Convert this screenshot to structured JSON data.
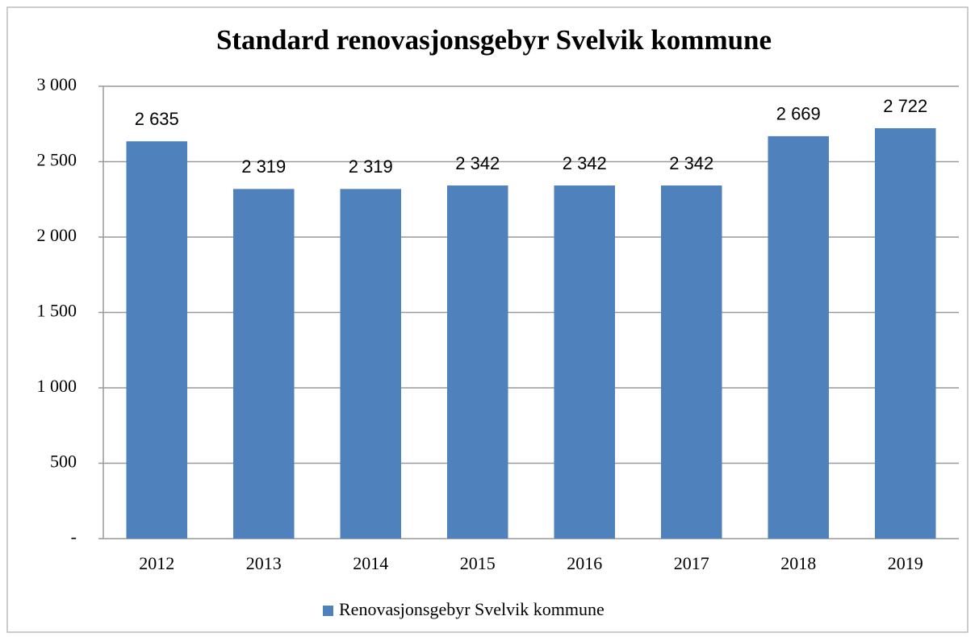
{
  "chart_data": {
    "type": "bar",
    "title": "Standard renovasjonsgebyr Svelvik kommune",
    "categories": [
      "2012",
      "2013",
      "2014",
      "2015",
      "2016",
      "2017",
      "2018",
      "2019"
    ],
    "series": [
      {
        "name": "Renovasjonsgebyr Svelvik kommune",
        "color": "#4f81bd",
        "values": [
          2635,
          2319,
          2319,
          2342,
          2342,
          2342,
          2669,
          2722
        ],
        "value_labels": [
          "2 635",
          "2 319",
          "2 319",
          "2 342",
          "2 342",
          "2 342",
          "2 669",
          "2 722"
        ]
      }
    ],
    "ylim": [
      0,
      3000
    ],
    "yticks": [
      {
        "value": 0,
        "label": "-"
      },
      500,
      {
        "value": 1000,
        "label": "1 000"
      },
      {
        "value": 1500,
        "label": "1 500"
      },
      {
        "value": 2000,
        "label": "2 000"
      },
      {
        "value": 2500,
        "label": "2 500"
      },
      {
        "value": 3000,
        "label": "3 000"
      }
    ],
    "grid": true,
    "legend": "bottom"
  }
}
